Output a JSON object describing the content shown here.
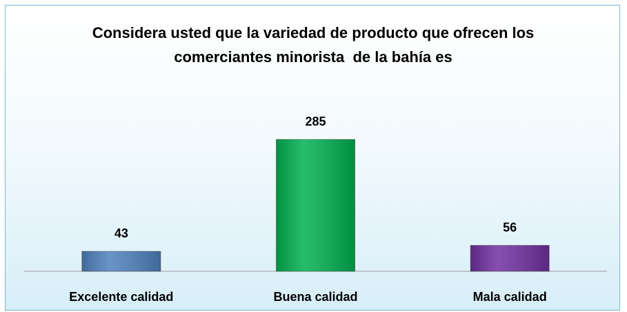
{
  "chart_data": {
    "type": "bar",
    "title": "Considera usted que la variedad de producto que ofrecen los comerciantes minorista  de la bahía es",
    "categories": [
      "Excelente calidad",
      "Buena calidad",
      "Mala calidad"
    ],
    "values": [
      43,
      285,
      56
    ],
    "colors": [
      "#4f81bd",
      "#00b050",
      "#7030a0"
    ]
  }
}
